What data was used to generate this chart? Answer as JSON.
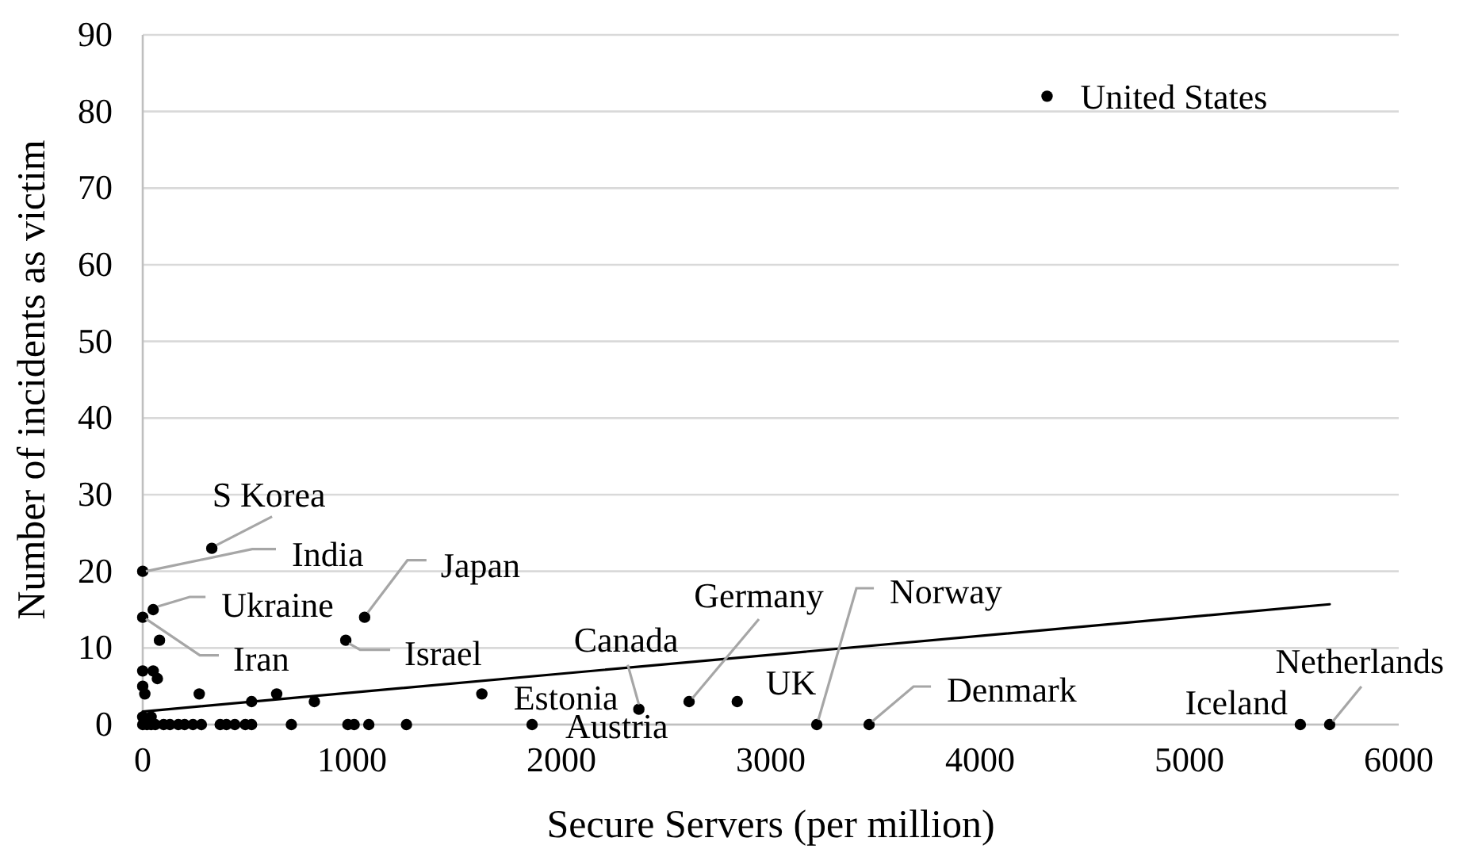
{
  "chart_data": {
    "type": "scatter",
    "xlabel": "Secure Servers (per million)",
    "ylabel": "Number of incidents as victim",
    "xlim": [
      0,
      6000
    ],
    "ylim": [
      0,
      90
    ],
    "xticks": [
      0,
      1000,
      2000,
      3000,
      4000,
      5000,
      6000
    ],
    "yticks": [
      0,
      10,
      20,
      30,
      40,
      50,
      60,
      70,
      80,
      90
    ],
    "grid": "y",
    "series": [
      {
        "type": "scatter",
        "color": "#000000",
        "marker": "circle",
        "x": [
          4320,
          330,
          0,
          50,
          0,
          80,
          1060,
          970,
          0,
          50,
          70,
          0,
          10,
          270,
          520,
          640,
          820,
          1620,
          2370,
          2610,
          2840,
          0,
          40,
          1860,
          3220,
          3470,
          5530,
          5670,
          1260,
          1080,
          1010,
          980,
          710,
          520,
          490,
          440,
          400,
          370,
          280,
          240,
          200,
          170,
          130,
          100,
          0,
          20,
          40,
          60
        ],
        "values": [
          82,
          23,
          20,
          15,
          14,
          11,
          14,
          11,
          7,
          7,
          6,
          5,
          4,
          4,
          3,
          4,
          3,
          4,
          2,
          3,
          3,
          1,
          1,
          0,
          0,
          0,
          0,
          0,
          0,
          0,
          0,
          0,
          0,
          0,
          0,
          0,
          0,
          0,
          0,
          0,
          0,
          0,
          0,
          0,
          0,
          0,
          0,
          0
        ]
      },
      {
        "type": "line",
        "color": "#000000",
        "marker": "none",
        "line_style": "solid",
        "x": [
          0,
          5670
        ],
        "values": [
          1.7,
          15.7
        ]
      }
    ],
    "annotations": [
      {
        "text": "United States",
        "x": 4320,
        "y": 82
      },
      {
        "text": "S Korea",
        "x": 330,
        "y": 23
      },
      {
        "text": "India",
        "x": 0,
        "y": 20
      },
      {
        "text": "Ukraine",
        "x": 50,
        "y": 15
      },
      {
        "text": "Iran",
        "x": 0,
        "y": 14
      },
      {
        "text": "Japan",
        "x": 1060,
        "y": 14
      },
      {
        "text": "Israel",
        "x": 970,
        "y": 11
      },
      {
        "text": "Estonia",
        "x": 1620,
        "y": 4
      },
      {
        "text": "Canada",
        "x": 2370,
        "y": 2
      },
      {
        "text": "Austria",
        "x": 1860,
        "y": 0
      },
      {
        "text": "Germany",
        "x": 2610,
        "y": 3
      },
      {
        "text": "UK",
        "x": 2840,
        "y": 3
      },
      {
        "text": "Norway",
        "x": 3220,
        "y": 0
      },
      {
        "text": "Denmark",
        "x": 3470,
        "y": 0
      },
      {
        "text": "Iceland",
        "x": 5530,
        "y": 0
      },
      {
        "text": "Netherlands",
        "x": 5670,
        "y": 0
      }
    ]
  }
}
